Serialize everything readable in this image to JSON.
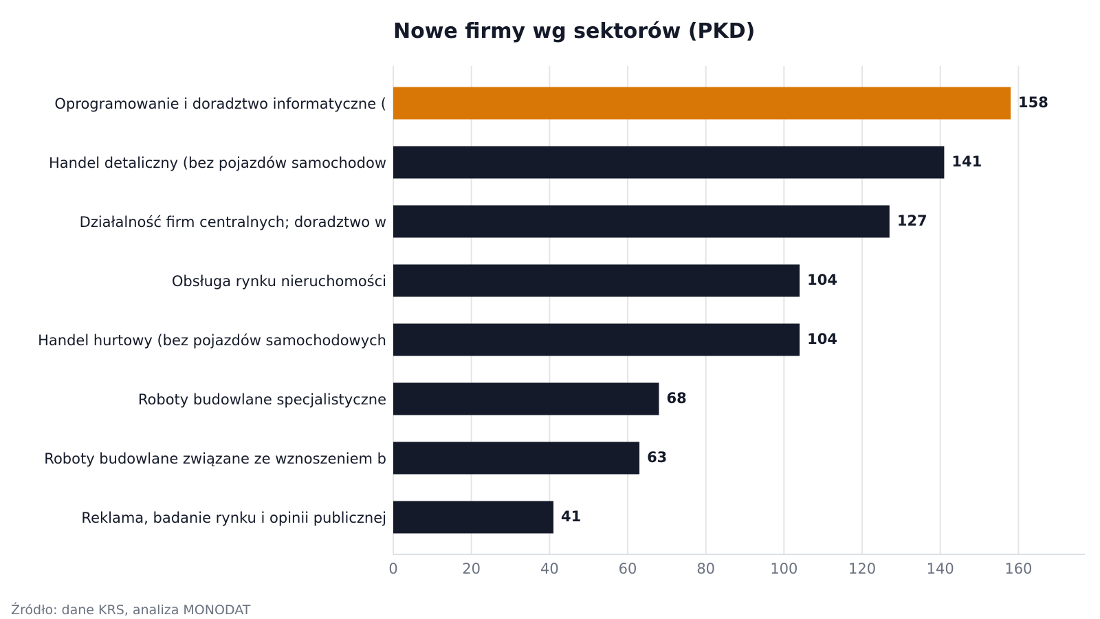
{
  "colors": {
    "highlight": "#d97706",
    "bar": "#141a29",
    "grid": "#e5e5e5",
    "axis": "#d1d5db",
    "text": "#141a29",
    "muted": "#6b7280"
  },
  "source": "Źródło: dane KRS, analiza MONODAT",
  "chart_data": {
    "type": "bar",
    "orientation": "horizontal",
    "title": "Nowe firmy wg sektorów (PKD)",
    "xlabel": "",
    "ylabel": "",
    "categories": [
      "Oprogramowanie i doradztwo informatyczne (",
      "Handel detaliczny (bez pojazdów samochodow",
      "Działalność firm centralnych; doradztwo w ",
      "Obsługa rynku nieruchomości",
      "Handel hurtowy (bez pojazdów samochodowych",
      "Roboty budowlane specjalistyczne",
      "Roboty budowlane związane ze wznoszeniem b",
      "Reklama, badanie rynku i opinii publicznej"
    ],
    "values": [
      158,
      141,
      127,
      104,
      104,
      68,
      63,
      41
    ],
    "highlight_index": 0,
    "xlim": [
      0,
      177
    ],
    "xticks": [
      0,
      20,
      40,
      60,
      80,
      100,
      120,
      140,
      160
    ],
    "grid": "vertical",
    "legend": "none"
  }
}
